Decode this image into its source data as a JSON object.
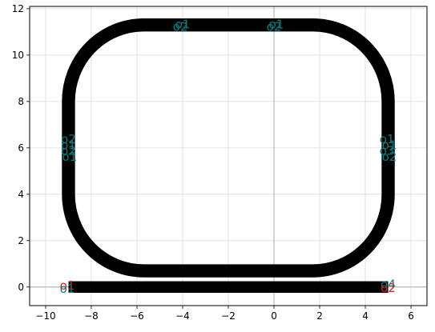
{
  "chart_data": {
    "type": "layout",
    "xlim": [
      -10.7,
      6.7
    ],
    "ylim": [
      -0.8,
      12.1
    ],
    "xticks": [
      -10,
      -8,
      -6,
      -4,
      -2,
      0,
      2,
      4,
      6
    ],
    "yticks": [
      0,
      2,
      4,
      6,
      8,
      10,
      12
    ],
    "grid": true,
    "axis_lines": {
      "x": 0,
      "y": 0
    },
    "waveguide_width": 0.5,
    "straight_waveguide": {
      "from": [
        -9,
        0
      ],
      "to": [
        5,
        0
      ]
    },
    "ring_waveguide": {
      "center": [
        -2,
        6
      ],
      "half_width": 7,
      "half_height": 5.3,
      "corner_radius": 3.3,
      "top_straight": [
        -4,
        0
      ],
      "bottom_straight": [
        -4,
        0
      ]
    },
    "colors": {
      "waveguide": "#000000",
      "port_teal": "#008080",
      "port_red": "#e41a1c",
      "grid": "#d9d9d9",
      "axis_line": "#aaaaaa"
    },
    "ports": [
      {
        "label": "o1",
        "x": -4.0,
        "y": 11.3,
        "color": "teal"
      },
      {
        "label": "o2",
        "x": -4.1,
        "y": 11.2,
        "color": "teal"
      },
      {
        "label": "o1",
        "x": 0.1,
        "y": 11.3,
        "color": "teal"
      },
      {
        "label": "o2",
        "x": 0.0,
        "y": 11.2,
        "color": "teal"
      },
      {
        "label": "o2",
        "x": -9.0,
        "y": 6.35,
        "color": "teal"
      },
      {
        "label": "o1",
        "x": -9.0,
        "y": 6.1,
        "color": "teal"
      },
      {
        "label": "o2",
        "x": -9.0,
        "y": 5.85,
        "color": "teal"
      },
      {
        "label": "o1",
        "x": -8.95,
        "y": 5.6,
        "color": "teal"
      },
      {
        "label": "o1",
        "x": 4.95,
        "y": 6.35,
        "color": "teal"
      },
      {
        "label": "o1",
        "x": 5.05,
        "y": 6.1,
        "color": "teal"
      },
      {
        "label": "o3",
        "x": 4.95,
        "y": 5.85,
        "color": "teal"
      },
      {
        "label": "o2",
        "x": 5.05,
        "y": 5.6,
        "color": "teal"
      },
      {
        "label": "o1",
        "x": -9.05,
        "y": 0.05,
        "color": "red"
      },
      {
        "label": "o1",
        "x": -9.05,
        "y": -0.1,
        "color": "teal"
      },
      {
        "label": "o4",
        "x": 5.0,
        "y": 0.1,
        "color": "teal"
      },
      {
        "label": "o2",
        "x": 5.0,
        "y": -0.05,
        "color": "red"
      }
    ]
  }
}
